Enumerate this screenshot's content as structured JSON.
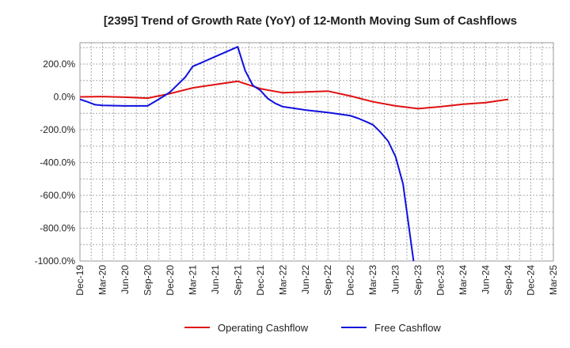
{
  "chart_data": {
    "type": "line",
    "title": "[2395]  Trend of Growth Rate (YoY) of 12-Month Moving Sum of Cashflows",
    "xlabel": "",
    "ylabel": "",
    "x_ticks": [
      "Dec-19",
      "Mar-20",
      "Jun-20",
      "Sep-20",
      "Dec-20",
      "Mar-21",
      "Jun-21",
      "Sep-21",
      "Dec-21",
      "Mar-22",
      "Jun-22",
      "Sep-22",
      "Dec-22",
      "Mar-23",
      "Jun-23",
      "Sep-23",
      "Dec-23",
      "Mar-24",
      "Jun-24",
      "Sep-24",
      "Dec-24",
      "Mar-25"
    ],
    "y_ticks": [
      200,
      0,
      -200,
      -400,
      -600,
      -800,
      -1000
    ],
    "y_tick_labels": [
      "200.0%",
      "0.0%",
      "-200.0%",
      "-400.0%",
      "-600.0%",
      "-800.0%",
      "-1000.0%"
    ],
    "ylim": [
      -1000,
      330
    ],
    "grid": true,
    "legend_position": "bottom",
    "series": [
      {
        "name": "Operating Cashflow",
        "color": "#e01010",
        "points": [
          [
            0,
            0
          ],
          [
            1,
            2
          ],
          [
            2,
            -2
          ],
          [
            3,
            -8
          ],
          [
            4,
            20
          ],
          [
            5,
            55
          ],
          [
            6,
            75
          ],
          [
            7,
            95
          ],
          [
            8,
            50
          ],
          [
            9,
            25
          ],
          [
            10,
            30
          ],
          [
            11,
            35
          ],
          [
            12,
            5
          ],
          [
            13,
            -30
          ],
          [
            14,
            -55
          ],
          [
            15,
            -72
          ],
          [
            16,
            -60
          ],
          [
            17,
            -45
          ],
          [
            18,
            -35
          ],
          [
            19,
            -15
          ]
        ]
      },
      {
        "name": "Free Cashflow",
        "color": "#1010e0",
        "points": [
          [
            0,
            -15
          ],
          [
            0.33,
            -30
          ],
          [
            0.67,
            -48
          ],
          [
            1,
            -52
          ],
          [
            2,
            -55
          ],
          [
            3,
            -55
          ],
          [
            3.67,
            0
          ],
          [
            4,
            30
          ],
          [
            4.67,
            120
          ],
          [
            5,
            185
          ],
          [
            6,
            245
          ],
          [
            7,
            305
          ],
          [
            7.33,
            160
          ],
          [
            7.67,
            70
          ],
          [
            8,
            40
          ],
          [
            8.33,
            -10
          ],
          [
            8.67,
            -40
          ],
          [
            9,
            -60
          ],
          [
            10,
            -80
          ],
          [
            11,
            -95
          ],
          [
            12,
            -115
          ],
          [
            12.33,
            -130
          ],
          [
            12.67,
            -150
          ],
          [
            13,
            -170
          ],
          [
            13.33,
            -215
          ],
          [
            13.67,
            -270
          ],
          [
            14,
            -365
          ],
          [
            14.33,
            -530
          ],
          [
            14.67,
            -870
          ],
          [
            14.8,
            -1000
          ]
        ]
      }
    ]
  }
}
